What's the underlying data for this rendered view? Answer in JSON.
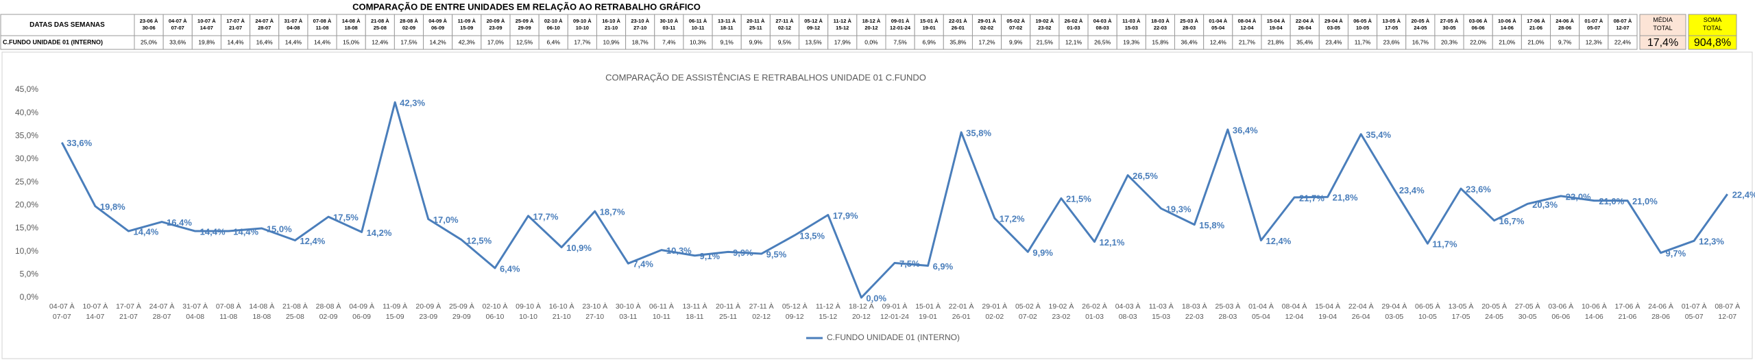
{
  "title": "COMPARAÇÃO DE ENTRE UNIDADES EM RELAÇÃO AO RETRABALHO GRÁFICO",
  "table": {
    "header_label": "DATAS DAS SEMANAS",
    "weeks": [
      "23-06 À 30-06",
      "04-07 À 07-07",
      "10-07 À 14-07",
      "17-07 À 21-07",
      "24-07 À 28-07",
      "31-07 À 04-08",
      "07-08 À 11-08",
      "14-08 À 18-08",
      "21-08 À 25-08",
      "28-08 À 02-09",
      "04-09 À 06-09",
      "11-09 À 15-09",
      "20-09 À 23-09",
      "25-09 À 29-09",
      "02-10 À 06-10",
      "09-10 À 10-10",
      "16-10 À 21-10",
      "23-10 À 27-10",
      "30-10 À 03-11",
      "06-11 À 10-11",
      "13-11 À 18-11",
      "20-11 À 25-11",
      "27-11 À 02-12",
      "05-12 À 09-12",
      "11-12 À 15-12",
      "18-12 À 20-12",
      "09-01 À 12-01-24",
      "15-01 À 19-01",
      "22-01 À 26-01",
      "29-01 À 02-02",
      "05-02 À 07-02",
      "19-02 À 23-02",
      "26-02 À 01-03",
      "04-03 À 08-03",
      "11-03 À 15-03",
      "18-03 À 22-03",
      "25-03 À 28-03",
      "01-04 À 05-04",
      "08-04 À 12-04",
      "15-04 À 19-04",
      "22-04 À 26-04",
      "29-04 À 03-05",
      "06-05 À 10-05",
      "13-05 À 17-05",
      "20-05 À 24-05",
      "27-05 À 30-05",
      "03-06 À 06-06",
      "10-06 À 14-06",
      "17-06 À 21-06",
      "24-06 À 28-06",
      "01-07 À 05-07",
      "08-07 À 12-07"
    ],
    "row_label": "C.FUNDO UNIDADE 01 (INTERNO)",
    "values": [
      "25,0%",
      "33,6%",
      "19,8%",
      "14,4%",
      "16,4%",
      "14,4%",
      "14,4%",
      "15,0%",
      "12,4%",
      "17,5%",
      "14,2%",
      "42,3%",
      "17,0%",
      "12,5%",
      "6,4%",
      "17,7%",
      "10,9%",
      "18,7%",
      "7,4%",
      "10,3%",
      "9,1%",
      "9,9%",
      "9,5%",
      "13,5%",
      "17,9%",
      "0,0%",
      "7,5%",
      "6,9%",
      "35,8%",
      "17,2%",
      "9,9%",
      "21,5%",
      "12,1%",
      "26,5%",
      "19,3%",
      "15,8%",
      "36,4%",
      "12,4%",
      "21,7%",
      "21,8%",
      "35,4%",
      "23,4%",
      "11,7%",
      "23,6%",
      "16,7%",
      "20,3%",
      "22,0%",
      "21,0%",
      "21,0%",
      "9,7%",
      "12,3%",
      "22,4%"
    ],
    "average_header": "MÉDIA TOTAL",
    "average": "17,4%",
    "sum_header": "SOMA TOTAL",
    "sum": "904,8%"
  },
  "chart_data": {
    "type": "line",
    "title": "COMPARAÇÃO DE ASSISTÊNCIAS E RETRABALHOS UNIDADE 01 C.FUNDO",
    "categories": [
      "04-07 À 07-07",
      "10-07 À 14-07",
      "17-07 À 21-07",
      "24-07 À 28-07",
      "31-07 À 04-08",
      "07-08 À 11-08",
      "14-08 À 18-08",
      "21-08 À 25-08",
      "28-08 À 02-09",
      "04-09 À 06-09",
      "11-09 À 15-09",
      "20-09 À 23-09",
      "25-09 À 29-09",
      "02-10 À 06-10",
      "09-10 À 10-10",
      "16-10 À 21-10",
      "23-10 À 27-10",
      "30-10 À 03-11",
      "06-11 À 10-11",
      "13-11 À 18-11",
      "20-11 À 25-11",
      "27-11 À 02-12",
      "05-12 À 09-12",
      "11-12 À 15-12",
      "18-12 À 20-12",
      "09-01 À 12-01-24",
      "15-01 À 19-01",
      "22-01 À 26-01",
      "29-01 À 02-02",
      "05-02 À 07-02",
      "19-02 À 23-02",
      "26-02 À 01-03",
      "04-03 À 08-03",
      "11-03 À 15-03",
      "18-03 À 22-03",
      "25-03 À 28-03",
      "01-04 À 05-04",
      "08-04 À 12-04",
      "15-04 À 19-04",
      "22-04 À 26-04",
      "29-04 À 03-05",
      "06-05 À 10-05",
      "13-05 À 17-05",
      "20-05 À 24-05",
      "27-05 À 30-05",
      "03-06 À 06-06",
      "10-06 À 14-06",
      "17-06 À 21-06",
      "24-06 À 28-06",
      "01-07 À 05-07",
      "08-07 À 12-07"
    ],
    "series": [
      {
        "name": "C.FUNDO UNIDADE 01 (INTERNO)",
        "color": "#4a7ebb",
        "values": [
          33.6,
          19.8,
          14.4,
          16.4,
          14.4,
          14.4,
          15.0,
          12.4,
          17.5,
          14.2,
          42.3,
          17.0,
          12.5,
          6.4,
          17.7,
          10.9,
          18.7,
          7.4,
          10.3,
          9.1,
          9.9,
          9.5,
          13.5,
          17.9,
          0.0,
          7.5,
          6.9,
          35.8,
          17.2,
          9.9,
          21.5,
          12.1,
          26.5,
          19.3,
          15.8,
          36.4,
          12.4,
          21.7,
          21.8,
          35.4,
          23.4,
          11.7,
          23.6,
          16.7,
          20.3,
          22.0,
          21.0,
          21.0,
          9.7,
          12.3,
          22.4
        ],
        "value_labels": [
          "33,6%",
          "19,8%",
          "14,4%",
          "16,4%",
          "14,4%",
          "14,4%",
          "15,0%",
          "12,4%",
          "17,5%",
          "14,2%",
          "42,3%",
          "17,0%",
          "12,5%",
          "6,4%",
          "17,7%",
          "10,9%",
          "18,7%",
          "7,4%",
          "10,3%",
          "9,1%",
          "9,9%",
          "9,5%",
          "13,5%",
          "17,9%",
          "0,0%",
          "7,5%",
          "6,9%",
          "35,8%",
          "17,2%",
          "9,9%",
          "21,5%",
          "12,1%",
          "26,5%",
          "19,3%",
          "15,8%",
          "36,4%",
          "12,4%",
          "21,7%",
          "21,8%",
          "35,4%",
          "23,4%",
          "11,7%",
          "23,6%",
          "16,7%",
          "20,3%",
          "22,0%",
          "21,0%",
          "21,0%",
          "9,7%",
          "12,3%",
          "22,4%"
        ]
      }
    ],
    "ylim": [
      0,
      45
    ],
    "yticks": [
      {
        "value": 0,
        "label": "0,0%"
      },
      {
        "value": 5,
        "label": "5,0%"
      },
      {
        "value": 10,
        "label": "10,0%"
      },
      {
        "value": 15,
        "label": "15,0%"
      },
      {
        "value": 20,
        "label": "20,0%"
      },
      {
        "value": 25,
        "label": "25,0%"
      },
      {
        "value": 30,
        "label": "30,0%"
      },
      {
        "value": 35,
        "label": "35,0%"
      },
      {
        "value": 40,
        "label": "40,0%"
      },
      {
        "value": 45,
        "label": "45,0%"
      }
    ],
    "grid": false,
    "legend": "bottom"
  }
}
